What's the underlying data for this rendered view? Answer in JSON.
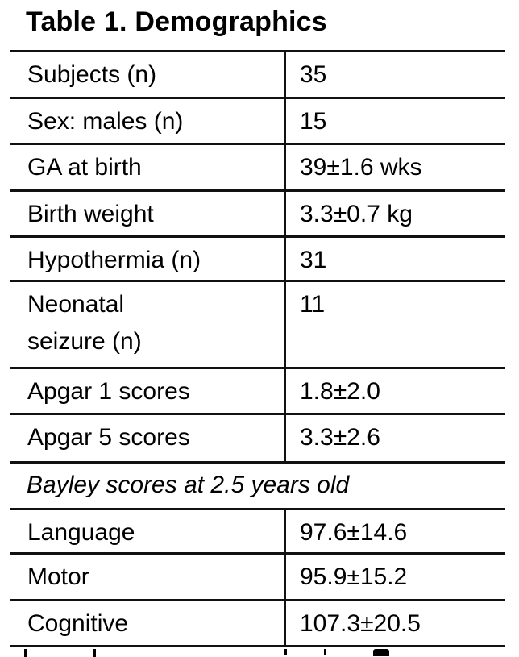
{
  "page_title": "Table 1. Demographics",
  "table": {
    "rows": [
      {
        "label": "Subjects (n)",
        "value": "35"
      },
      {
        "label": "Sex: males (n)",
        "value": "15"
      },
      {
        "label": "GA at birth",
        "value": "39±1.6 wks"
      },
      {
        "label": "Birth weight",
        "value": "3.3±0.7 kg"
      },
      {
        "label": "Hypothermia (n)",
        "value": "31"
      },
      {
        "label": "Neonatal seizure (n)",
        "value": "11"
      },
      {
        "label": "Apgar 1 scores",
        "value": "1.8±2.0"
      },
      {
        "label": "Apgar 5 scores",
        "value": "3.3±2.6"
      },
      {
        "type": "section",
        "label": "Bayley scores at 2.5 years old",
        "value": ""
      },
      {
        "label": "Language",
        "value": "97.6±14.6"
      },
      {
        "label": "Motor",
        "value": "95.9±15.2"
      },
      {
        "label": "Cognitive",
        "value": "107.3±20.5"
      }
    ]
  },
  "colors": {
    "text": "#000000",
    "rule": "#111111",
    "background": "#ffffff"
  }
}
